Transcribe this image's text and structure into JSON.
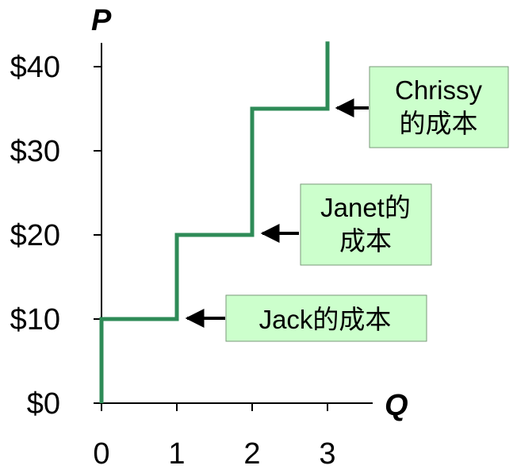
{
  "chart_data": {
    "type": "line",
    "title": "",
    "xlabel": "Q",
    "ylabel": "P",
    "step": true,
    "x": [
      0,
      0,
      1,
      1,
      2,
      2,
      3,
      3
    ],
    "y": [
      0,
      10,
      10,
      20,
      20,
      35,
      35,
      43
    ],
    "xlim": [
      0,
      3.5
    ],
    "ylim": [
      0,
      43
    ],
    "x_ticks": [
      0,
      1,
      2,
      3
    ],
    "x_tick_labels": [
      "0",
      "1",
      "2",
      "3"
    ],
    "y_ticks": [
      0,
      10,
      20,
      30,
      40
    ],
    "y_tick_labels": [
      "$0",
      "$10",
      "$20",
      "$30",
      "$40"
    ],
    "series_color": "#2e8b57",
    "grid": false,
    "annotations": [
      {
        "lines": [
          "Jack的成本"
        ],
        "points_to": [
          1,
          10
        ]
      },
      {
        "lines": [
          "Janet的",
          "成本"
        ],
        "points_to": [
          2,
          20
        ]
      },
      {
        "lines": [
          "Chrissy",
          "的成本"
        ],
        "points_to": [
          3,
          35
        ]
      }
    ]
  }
}
